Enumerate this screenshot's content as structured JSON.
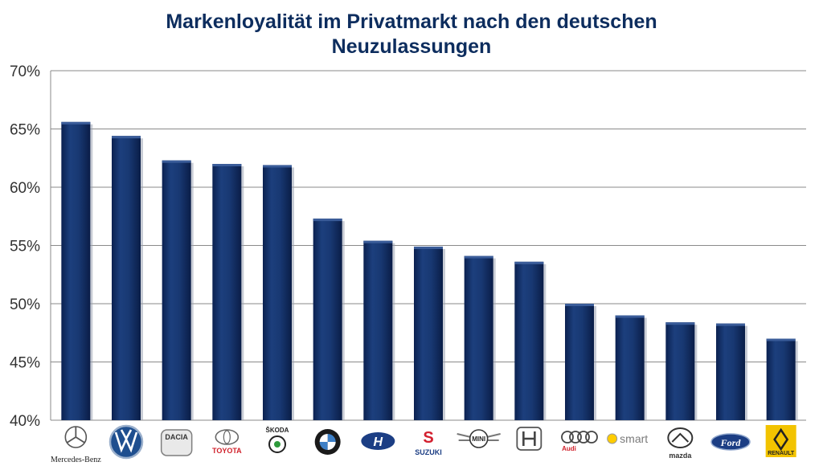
{
  "title_line1": "Markenloyalität im Privatmarkt nach den deutschen",
  "title_line2": "Neuzulassungen",
  "chart_data": {
    "type": "bar",
    "title": "Markenloyalität im Privatmarkt nach den deutschen Neuzulassungen",
    "ylim": [
      0.4,
      0.7
    ],
    "yticks": [
      "70%",
      "65%",
      "60%",
      "55%",
      "50%",
      "45%",
      "40%"
    ],
    "ytick_values": [
      0.7,
      0.65,
      0.6,
      0.55,
      0.5,
      0.45,
      0.4
    ],
    "grid": true,
    "categories": [
      "Mercedes-Benz",
      "Volkswagen",
      "Dacia",
      "Toyota",
      "Škoda",
      "BMW",
      "Hyundai",
      "Suzuki",
      "Mini",
      "Honda",
      "Audi",
      "smart",
      "Mazda",
      "Ford",
      "Renault"
    ],
    "values": [
      0.656,
      0.644,
      0.623,
      0.62,
      0.619,
      0.573,
      0.554,
      0.549,
      0.541,
      0.536,
      0.5,
      0.49,
      0.484,
      0.483,
      0.47
    ],
    "bar_color": "#14336b",
    "logo_texts": {
      "mercedes": "Mercedes-Benz",
      "dacia": "DACIA",
      "toyota": "TOYOTA",
      "skoda": "ŠKODA",
      "suzuki": "SUZUKI",
      "mini": "MINI",
      "audi": "Audi",
      "smart": "smart",
      "mazda": "mazda",
      "ford": "Ford",
      "renault": "RENAULT"
    }
  }
}
